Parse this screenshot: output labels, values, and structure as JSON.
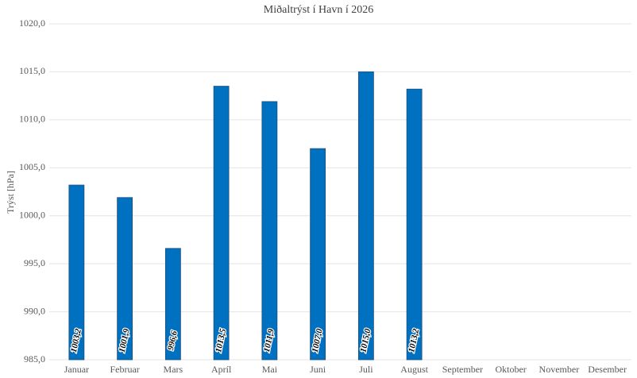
{
  "chart_data": {
    "type": "bar",
    "title": "Miðaltrýst í Havn í 2026",
    "y_label": "Trýst [hPa]",
    "categories": [
      "Januar",
      "Februar",
      "Mars",
      "Apríl",
      "Mai",
      "Juni",
      "Juli",
      "August",
      "September",
      "Oktober",
      "November",
      "Desember"
    ],
    "values": [
      1003.2,
      1001.9,
      996.6,
      1013.5,
      1011.9,
      1007.0,
      1015.0,
      1013.2,
      null,
      null,
      null,
      null
    ],
    "value_labels": [
      "1003,2",
      "1001,9",
      "996,6",
      "1013,5",
      "1011,9",
      "1007,0",
      "1015,0",
      "1013,2",
      null,
      null,
      null,
      null
    ],
    "color": "#0070c0",
    "ylim": [
      985,
      1020
    ],
    "yticks": [
      {
        "value": 985,
        "label": "985,0"
      },
      {
        "value": 990,
        "label": "990,0"
      },
      {
        "value": 995,
        "label": "995,0"
      },
      {
        "value": 1000,
        "label": "1000,0"
      },
      {
        "value": 1005,
        "label": "1005,0"
      },
      {
        "value": 1010,
        "label": "1010,0"
      },
      {
        "value": 1015,
        "label": "1015,0"
      },
      {
        "value": 1020,
        "label": "1020,0"
      }
    ],
    "grid": true
  }
}
